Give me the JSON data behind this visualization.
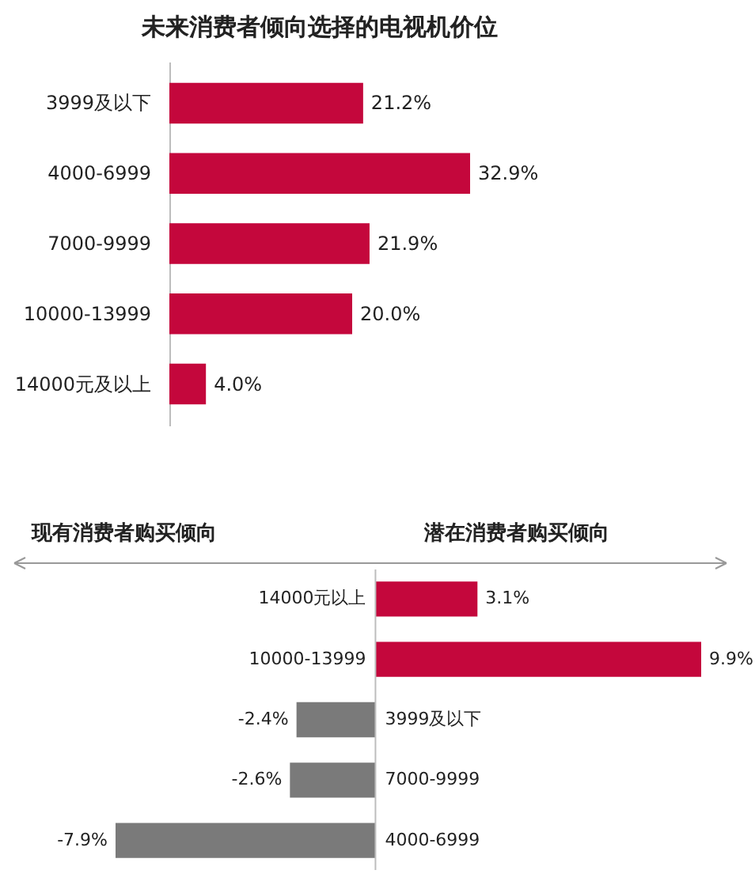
{
  "chart_data": [
    {
      "type": "bar",
      "orientation": "horizontal",
      "title": "未来消费者倾向选择的电视机价位",
      "categories": [
        "3999及以下",
        "4000-6999",
        "7000-9999",
        "10000-13999",
        "14000元及以上"
      ],
      "values": [
        21.2,
        32.9,
        21.9,
        20.0,
        4.0
      ],
      "value_labels": [
        "21.2%",
        "32.9%",
        "21.9%",
        "20.0%",
        "4.0%"
      ],
      "color": "#c4073c"
    },
    {
      "type": "bar",
      "orientation": "horizontal",
      "annotations": [
        "现有消费者购买倾向",
        "潜在消费者购买倾向"
      ],
      "categories": [
        "14000元以上",
        "10000-13999",
        "3999及以下",
        "7000-9999",
        "4000-6999"
      ],
      "values": [
        3.1,
        9.9,
        -2.4,
        -2.6,
        -7.9
      ],
      "value_labels": [
        "3.1%",
        "9.9%",
        "-2.4%",
        "-2.6%",
        "-7.9%"
      ],
      "colors": [
        "#c4073c",
        "#c4073c",
        "#7a7a7a",
        "#7a7a7a",
        "#7a7a7a"
      ]
    }
  ]
}
